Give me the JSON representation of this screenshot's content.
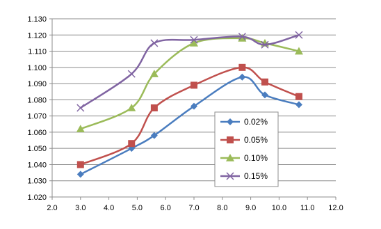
{
  "chart_data": {
    "type": "line",
    "smooth": true,
    "title": "",
    "xlabel": "",
    "ylabel": "",
    "xlim": [
      2.0,
      12.0
    ],
    "ylim": [
      1.02,
      1.13
    ],
    "x_ticks": [
      "2.0",
      "3.0",
      "4.0",
      "5.0",
      "6.0",
      "7.0",
      "8.0",
      "9.0",
      "10.0",
      "11.0",
      "12.0"
    ],
    "y_ticks": [
      "1.020",
      "1.030",
      "1.040",
      "1.050",
      "1.060",
      "1.070",
      "1.080",
      "1.090",
      "1.100",
      "1.110",
      "1.120",
      "1.130"
    ],
    "grid": {
      "horizontal": true,
      "vertical": false
    },
    "legend_position": "inside, lower-middle",
    "x": [
      3.0,
      4.8,
      5.6,
      7.0,
      8.7,
      9.5,
      10.7
    ],
    "series": [
      {
        "name": "0.02%",
        "color": "#4a7dbf",
        "marker": "diamond",
        "values": [
          1.034,
          1.05,
          1.058,
          1.076,
          1.094,
          1.083,
          1.077
        ]
      },
      {
        "name": "0.05%",
        "color": "#c0504d",
        "marker": "square",
        "values": [
          1.04,
          1.053,
          1.075,
          1.089,
          1.1,
          1.091,
          1.082
        ]
      },
      {
        "name": "0.10%",
        "color": "#9bbb59",
        "marker": "triangle",
        "values": [
          1.062,
          1.075,
          1.096,
          1.115,
          1.118,
          1.115,
          1.11
        ]
      },
      {
        "name": "0.15%",
        "color": "#8064a2",
        "marker": "x",
        "values": [
          1.075,
          1.096,
          1.115,
          1.117,
          1.119,
          1.114,
          1.12
        ]
      }
    ]
  }
}
